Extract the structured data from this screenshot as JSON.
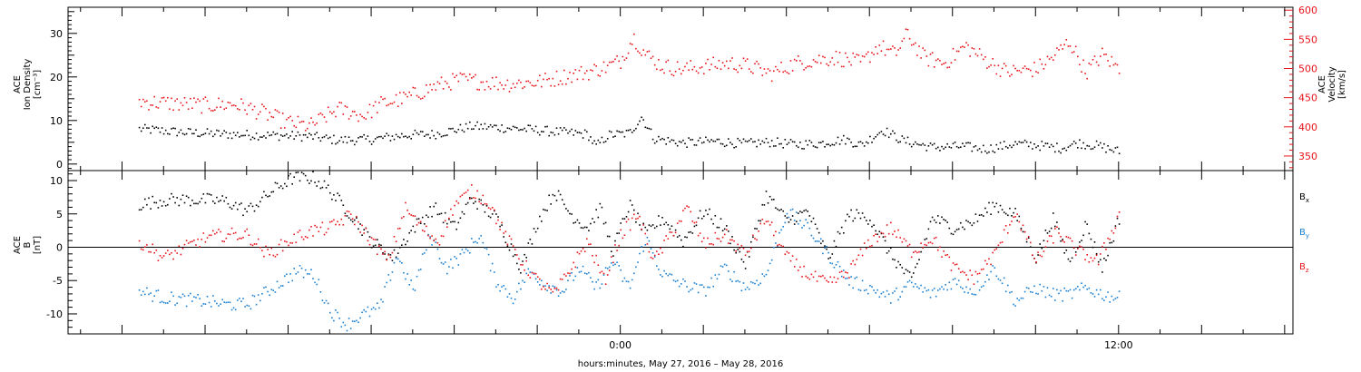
{
  "x_axis_title": "hours:minutes, May 27, 2016 – May 28, 2016",
  "chart_data": [
    {
      "type": "scatter",
      "panel": "top",
      "ylabel": [
        "ACE",
        "Ion Density",
        "[cm⁻³]"
      ],
      "ylabel_right": [
        "ACE",
        "Velocity",
        "[km/s]"
      ],
      "ylim": [
        -1.5,
        36
      ],
      "ylim_right": [
        325,
        605
      ],
      "yticks": [
        0,
        10,
        20,
        30
      ],
      "yticks_right": [
        350,
        400,
        450,
        500,
        550,
        600
      ],
      "xlim_hours": [
        -13.3,
        16.2
      ],
      "x_tick_labels": [
        {
          "label": "0:00",
          "hour": 0
        },
        {
          "label": "12:00",
          "hour": 12
        }
      ],
      "grid": false,
      "series": [
        {
          "color": "#000000",
          "axis": "left",
          "points": [
            [
              -11.6,
              8.2
            ],
            [
              -10.5,
              7.4
            ],
            [
              -9.5,
              7.0
            ],
            [
              -8.6,
              6.8
            ],
            [
              -7.5,
              6.5
            ],
            [
              -6.8,
              5.6
            ],
            [
              -6.0,
              5.8
            ],
            [
              -5.2,
              6.8
            ],
            [
              -4.5,
              7.0
            ],
            [
              -3.6,
              8.8
            ],
            [
              -3.0,
              8.6
            ],
            [
              -2.5,
              8.3
            ],
            [
              -1.5,
              7.5
            ],
            [
              -0.8,
              7.0
            ],
            [
              -0.6,
              4.2
            ],
            [
              -0.3,
              6.8
            ],
            [
              0.2,
              7.2
            ],
            [
              0.5,
              11.0
            ],
            [
              0.8,
              6.0
            ],
            [
              1.5,
              5.0
            ],
            [
              2.3,
              5.4
            ],
            [
              3.0,
              4.8
            ],
            [
              3.6,
              5.2
            ],
            [
              4.2,
              4.6
            ],
            [
              4.8,
              4.9
            ],
            [
              5.4,
              5.8
            ],
            [
              5.8,
              4.5
            ],
            [
              6.3,
              8.0
            ],
            [
              6.8,
              5.5
            ],
            [
              7.5,
              4.0
            ],
            [
              8.2,
              4.2
            ],
            [
              8.8,
              3.6
            ],
            [
              9.5,
              4.8
            ],
            [
              10.0,
              4.5
            ],
            [
              10.6,
              3.8
            ],
            [
              11.0,
              5.0
            ],
            [
              11.5,
              4.3
            ],
            [
              12.0,
              3.0
            ]
          ]
        },
        {
          "color": "#e8141b",
          "axis": "right",
          "points": [
            [
              -11.6,
              445
            ],
            [
              -11.0,
              442
            ],
            [
              -10.0,
              438
            ],
            [
              -9.3,
              440
            ],
            [
              -8.6,
              425
            ],
            [
              -8.1,
              410
            ],
            [
              -7.5,
              402
            ],
            [
              -6.8,
              432
            ],
            [
              -6.2,
              420
            ],
            [
              -5.8,
              440
            ],
            [
              -5.2,
              450
            ],
            [
              -4.5,
              470
            ],
            [
              -3.9,
              482
            ],
            [
              -3.3,
              478
            ],
            [
              -2.7,
              475
            ],
            [
              -2.0,
              478
            ],
            [
              -1.2,
              490
            ],
            [
              -0.8,
              495
            ],
            [
              -0.3,
              505
            ],
            [
              0.0,
              515
            ],
            [
              0.3,
              555
            ],
            [
              0.6,
              525
            ],
            [
              1.0,
              505
            ],
            [
              1.5,
              500
            ],
            [
              2.0,
              505
            ],
            [
              2.6,
              510
            ],
            [
              3.1,
              505
            ],
            [
              3.6,
              492
            ],
            [
              4.2,
              510
            ],
            [
              4.6,
              515
            ],
            [
              5.2,
              520
            ],
            [
              5.8,
              510
            ],
            [
              6.2,
              540
            ],
            [
              6.6,
              525
            ],
            [
              6.9,
              560
            ],
            [
              7.3,
              520
            ],
            [
              7.8,
              510
            ],
            [
              8.3,
              540
            ],
            [
              8.8,
              515
            ],
            [
              9.3,
              495
            ],
            [
              10.0,
              500
            ],
            [
              10.4,
              520
            ],
            [
              10.8,
              548
            ],
            [
              11.2,
              495
            ],
            [
              11.6,
              525
            ],
            [
              12.0,
              500
            ]
          ]
        }
      ]
    },
    {
      "type": "scatter",
      "panel": "bottom",
      "ylabel": [
        "ACE",
        "B",
        "[nT]"
      ],
      "ylim": [
        -13,
        11.5
      ],
      "yticks": [
        -10,
        -5,
        0,
        5,
        10
      ],
      "zero_line": true,
      "xlim_hours": [
        -13.3,
        16.2
      ],
      "x_tick_labels": [
        {
          "label": "0:00",
          "hour": 0
        },
        {
          "label": "12:00",
          "hour": 12
        }
      ],
      "grid": false,
      "legend_position": "right",
      "series": [
        {
          "name": "Bx",
          "name_base": "B",
          "name_sub": "x",
          "color": "#000000",
          "points": [
            [
              -11.6,
              6.5
            ],
            [
              -11.0,
              7.2
            ],
            [
              -10.0,
              7.2
            ],
            [
              -9.5,
              7.0
            ],
            [
              -9.0,
              5.5
            ],
            [
              -8.3,
              9.0
            ],
            [
              -7.9,
              10.5
            ],
            [
              -7.4,
              10.5
            ],
            [
              -7.0,
              8.5
            ],
            [
              -6.5,
              5.0
            ],
            [
              -6.0,
              1.0
            ],
            [
              -5.5,
              -1.5
            ],
            [
              -5.0,
              3.0
            ],
            [
              -4.5,
              6.0
            ],
            [
              -4.0,
              3.0
            ],
            [
              -3.6,
              7.5
            ],
            [
              -3.0,
              4.5
            ],
            [
              -2.4,
              -3.0
            ],
            [
              -2.0,
              4.0
            ],
            [
              -1.6,
              8.5
            ],
            [
              -1.2,
              5.0
            ],
            [
              -0.8,
              3.0
            ],
            [
              -0.5,
              6.0
            ],
            [
              -0.2,
              -0.5
            ],
            [
              0.2,
              6.5
            ],
            [
              0.6,
              2.0
            ],
            [
              1.0,
              4.5
            ],
            [
              1.5,
              1.0
            ],
            [
              2.0,
              5.5
            ],
            [
              2.5,
              3.0
            ],
            [
              3.0,
              -2.5
            ],
            [
              3.5,
              8.0
            ],
            [
              4.0,
              4.0
            ],
            [
              4.5,
              5.5
            ],
            [
              5.0,
              -1.5
            ],
            [
              5.5,
              5.0
            ],
            [
              6.0,
              4.5
            ],
            [
              6.5,
              -1.0
            ],
            [
              7.0,
              -5.0
            ],
            [
              7.5,
              4.5
            ],
            [
              8.0,
              3.0
            ],
            [
              8.5,
              4.0
            ],
            [
              9.0,
              6.5
            ],
            [
              9.5,
              5.0
            ],
            [
              10.0,
              -1.5
            ],
            [
              10.4,
              4.5
            ],
            [
              10.8,
              -2.0
            ],
            [
              11.2,
              3.5
            ],
            [
              11.6,
              -3.0
            ],
            [
              12.0,
              4.5
            ]
          ]
        },
        {
          "name": "By",
          "name_base": "B",
          "name_sub": "y",
          "color": "#1a7fd0",
          "points": [
            [
              -11.6,
              -6.5
            ],
            [
              -11.0,
              -7.5
            ],
            [
              -10.0,
              -8.0
            ],
            [
              -9.5,
              -8.5
            ],
            [
              -9.0,
              -8.5
            ],
            [
              -8.5,
              -6.5
            ],
            [
              -7.8,
              -3.5
            ],
            [
              -7.4,
              -4.0
            ],
            [
              -7.0,
              -9.5
            ],
            [
              -6.6,
              -11.5
            ],
            [
              -6.2,
              -10.0
            ],
            [
              -5.8,
              -9.0
            ],
            [
              -5.4,
              -1.0
            ],
            [
              -5.0,
              -6.5
            ],
            [
              -4.6,
              2.0
            ],
            [
              -4.2,
              -3.0
            ],
            [
              -3.8,
              -1.0
            ],
            [
              -3.4,
              2.0
            ],
            [
              -3.0,
              -5.0
            ],
            [
              -2.6,
              -7.5
            ],
            [
              -2.2,
              -3.5
            ],
            [
              -1.8,
              -5.5
            ],
            [
              -1.4,
              -6.5
            ],
            [
              -1.0,
              -3.0
            ],
            [
              -0.6,
              -6.0
            ],
            [
              -0.2,
              -2.0
            ],
            [
              0.2,
              -6.0
            ],
            [
              0.6,
              1.5
            ],
            [
              1.0,
              -4.0
            ],
            [
              1.5,
              -5.5
            ],
            [
              2.0,
              -6.5
            ],
            [
              2.5,
              -3.0
            ],
            [
              3.0,
              -6.0
            ],
            [
              3.5,
              -4.0
            ],
            [
              4.0,
              5.5
            ],
            [
              4.5,
              3.0
            ],
            [
              5.0,
              -1.0
            ],
            [
              5.5,
              -5.0
            ],
            [
              6.0,
              -6.0
            ],
            [
              6.5,
              -7.5
            ],
            [
              7.0,
              -5.5
            ],
            [
              7.5,
              -7.0
            ],
            [
              8.0,
              -5.0
            ],
            [
              8.5,
              -6.5
            ],
            [
              9.0,
              -3.0
            ],
            [
              9.5,
              -8.0
            ],
            [
              10.0,
              -6.0
            ],
            [
              10.4,
              -7.0
            ],
            [
              10.8,
              -7.0
            ],
            [
              11.2,
              -6.0
            ],
            [
              11.6,
              -7.0
            ],
            [
              12.0,
              -7.5
            ]
          ]
        },
        {
          "name": "Bz",
          "name_base": "B",
          "name_sub": "z",
          "color": "#e8141b",
          "points": [
            [
              -11.6,
              1.0
            ],
            [
              -11.0,
              -1.5
            ],
            [
              -10.0,
              1.5
            ],
            [
              -9.5,
              2.0
            ],
            [
              -9.0,
              2.0
            ],
            [
              -8.5,
              -1.0
            ],
            [
              -8.0,
              1.0
            ],
            [
              -7.5,
              2.5
            ],
            [
              -7.0,
              3.0
            ],
            [
              -6.5,
              5.0
            ],
            [
              -6.0,
              1.0
            ],
            [
              -5.6,
              -2.0
            ],
            [
              -5.2,
              6.0
            ],
            [
              -4.8,
              3.0
            ],
            [
              -4.4,
              1.0
            ],
            [
              -4.0,
              6.5
            ],
            [
              -3.6,
              8.5
            ],
            [
              -3.2,
              7.0
            ],
            [
              -2.8,
              2.0
            ],
            [
              -2.4,
              -2.0
            ],
            [
              -2.0,
              -5.0
            ],
            [
              -1.6,
              -7.0
            ],
            [
              -1.2,
              -3.0
            ],
            [
              -0.8,
              1.0
            ],
            [
              -0.4,
              -5.0
            ],
            [
              0.0,
              2.0
            ],
            [
              0.4,
              5.0
            ],
            [
              0.8,
              -2.0
            ],
            [
              1.2,
              2.0
            ],
            [
              1.6,
              6.0
            ],
            [
              2.0,
              0.5
            ],
            [
              2.5,
              2.0
            ],
            [
              3.0,
              -1.0
            ],
            [
              3.5,
              4.5
            ],
            [
              4.0,
              -1.5
            ],
            [
              4.5,
              -4.0
            ],
            [
              5.0,
              -5.5
            ],
            [
              5.5,
              -3.5
            ],
            [
              6.0,
              1.0
            ],
            [
              6.5,
              3.0
            ],
            [
              7.0,
              -0.5
            ],
            [
              7.5,
              1.5
            ],
            [
              8.0,
              -3.0
            ],
            [
              8.5,
              -4.5
            ],
            [
              9.0,
              -1.0
            ],
            [
              9.5,
              5.5
            ],
            [
              10.0,
              -2.0
            ],
            [
              10.5,
              2.5
            ],
            [
              11.0,
              -0.5
            ],
            [
              11.5,
              -2.0
            ],
            [
              12.0,
              5.0
            ]
          ]
        }
      ]
    }
  ]
}
